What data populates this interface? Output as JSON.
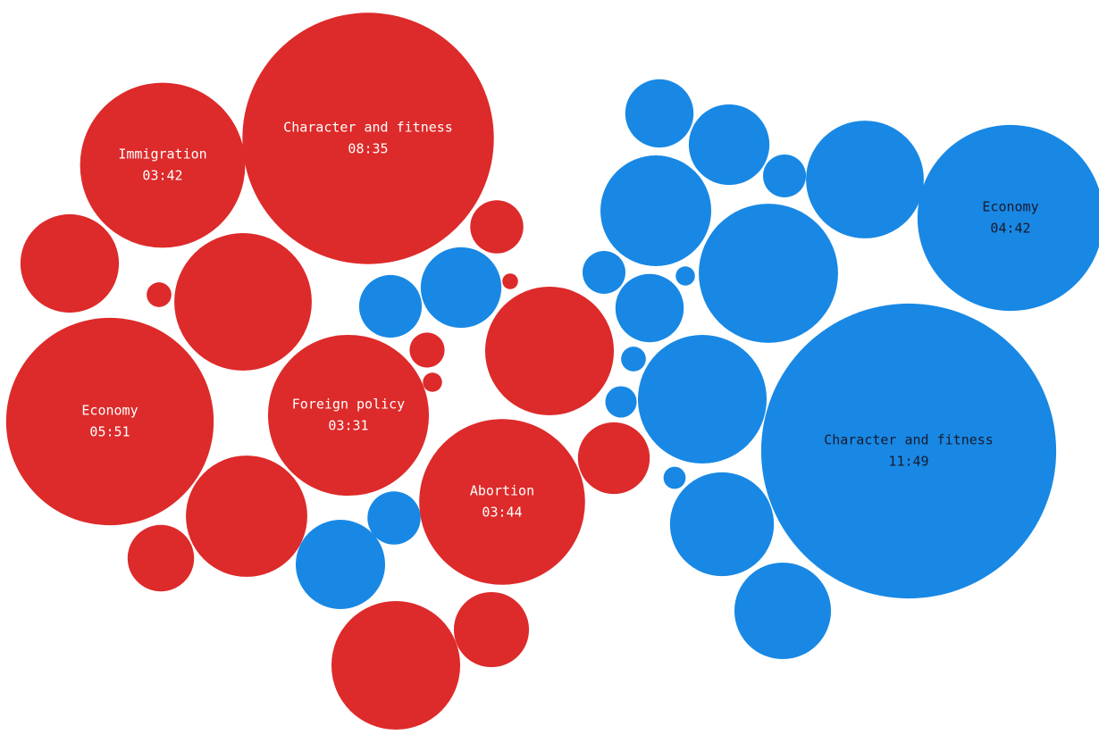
{
  "chart_data": {
    "type": "bubble",
    "series": [
      {
        "color": "#dd2a2a",
        "text_color": "#ffffff",
        "categories": [
          "Character and fitness",
          "Immigration",
          "Economy",
          "Foreign policy",
          "Abortion",
          null,
          null,
          null,
          null,
          null,
          null,
          null,
          null,
          null,
          null,
          null,
          null,
          null
        ],
        "values": [
          515,
          222,
          351,
          211,
          224,
          79,
          154,
          5,
          23,
          2,
          135,
          10,
          3,
          120,
          36,
          42,
          135,
          46
        ],
        "value_labels": [
          "08:35",
          "03:42",
          "05:51",
          "03:31",
          "03:44",
          null,
          null,
          null,
          null,
          null,
          null,
          null,
          null,
          null,
          null,
          null,
          null,
          null
        ]
      },
      {
        "color": "#1888e4",
        "text_color": "#1a1a2e",
        "categories": [
          "Character and fitness",
          "Economy",
          null,
          null,
          null,
          null,
          null,
          null,
          null,
          null,
          null,
          null,
          null,
          null,
          null,
          null,
          null,
          null,
          null,
          null,
          null
        ],
        "values": [
          709,
          282,
          38,
          53,
          15,
          113,
          100,
          158,
          15,
          3,
          38,
          53,
          32,
          5,
          135,
          8,
          4,
          88,
          76,
          23,
          65
        ],
        "value_labels": [
          "11:49",
          "04:42",
          null,
          null,
          null,
          null,
          null,
          null,
          null,
          null,
          null,
          null,
          null,
          null,
          null,
          null,
          null,
          null,
          null,
          null,
          null
        ]
      }
    ]
  }
}
